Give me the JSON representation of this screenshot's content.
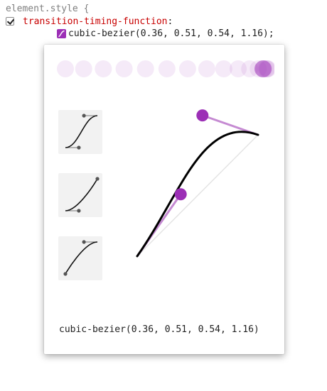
{
  "rule": {
    "selector": "element.style {",
    "property": "transition-timing-function",
    "colon": ":",
    "value": "cubic-bezier(0.36, 0.51, 0.54, 1.16);",
    "enabled": true
  },
  "editor": {
    "preview_label": "animation-preview",
    "bezier": [
      0.36,
      0.51,
      0.54,
      1.16
    ],
    "bezier_text": "cubic-bezier(0.36, 0.51, 0.54, 1.16)",
    "presets": [
      {
        "name": "ease-in-out",
        "curve": [
          0.42,
          0,
          0.58,
          1
        ]
      },
      {
        "name": "ease-in",
        "curve": [
          0.42,
          0,
          1,
          1
        ]
      },
      {
        "name": "ease-out",
        "curve": [
          0,
          0,
          0.58,
          1
        ]
      }
    ]
  },
  "colors": {
    "accent": "#9c2fb6",
    "accent_light": "#c58ad2",
    "property": "#c80000",
    "selector": "#7f7f7f",
    "preset_bg": "#f2f2f2"
  },
  "icons": {
    "checkbox": "checkbox-checked-icon",
    "swatch": "bezier-swatch-icon"
  }
}
